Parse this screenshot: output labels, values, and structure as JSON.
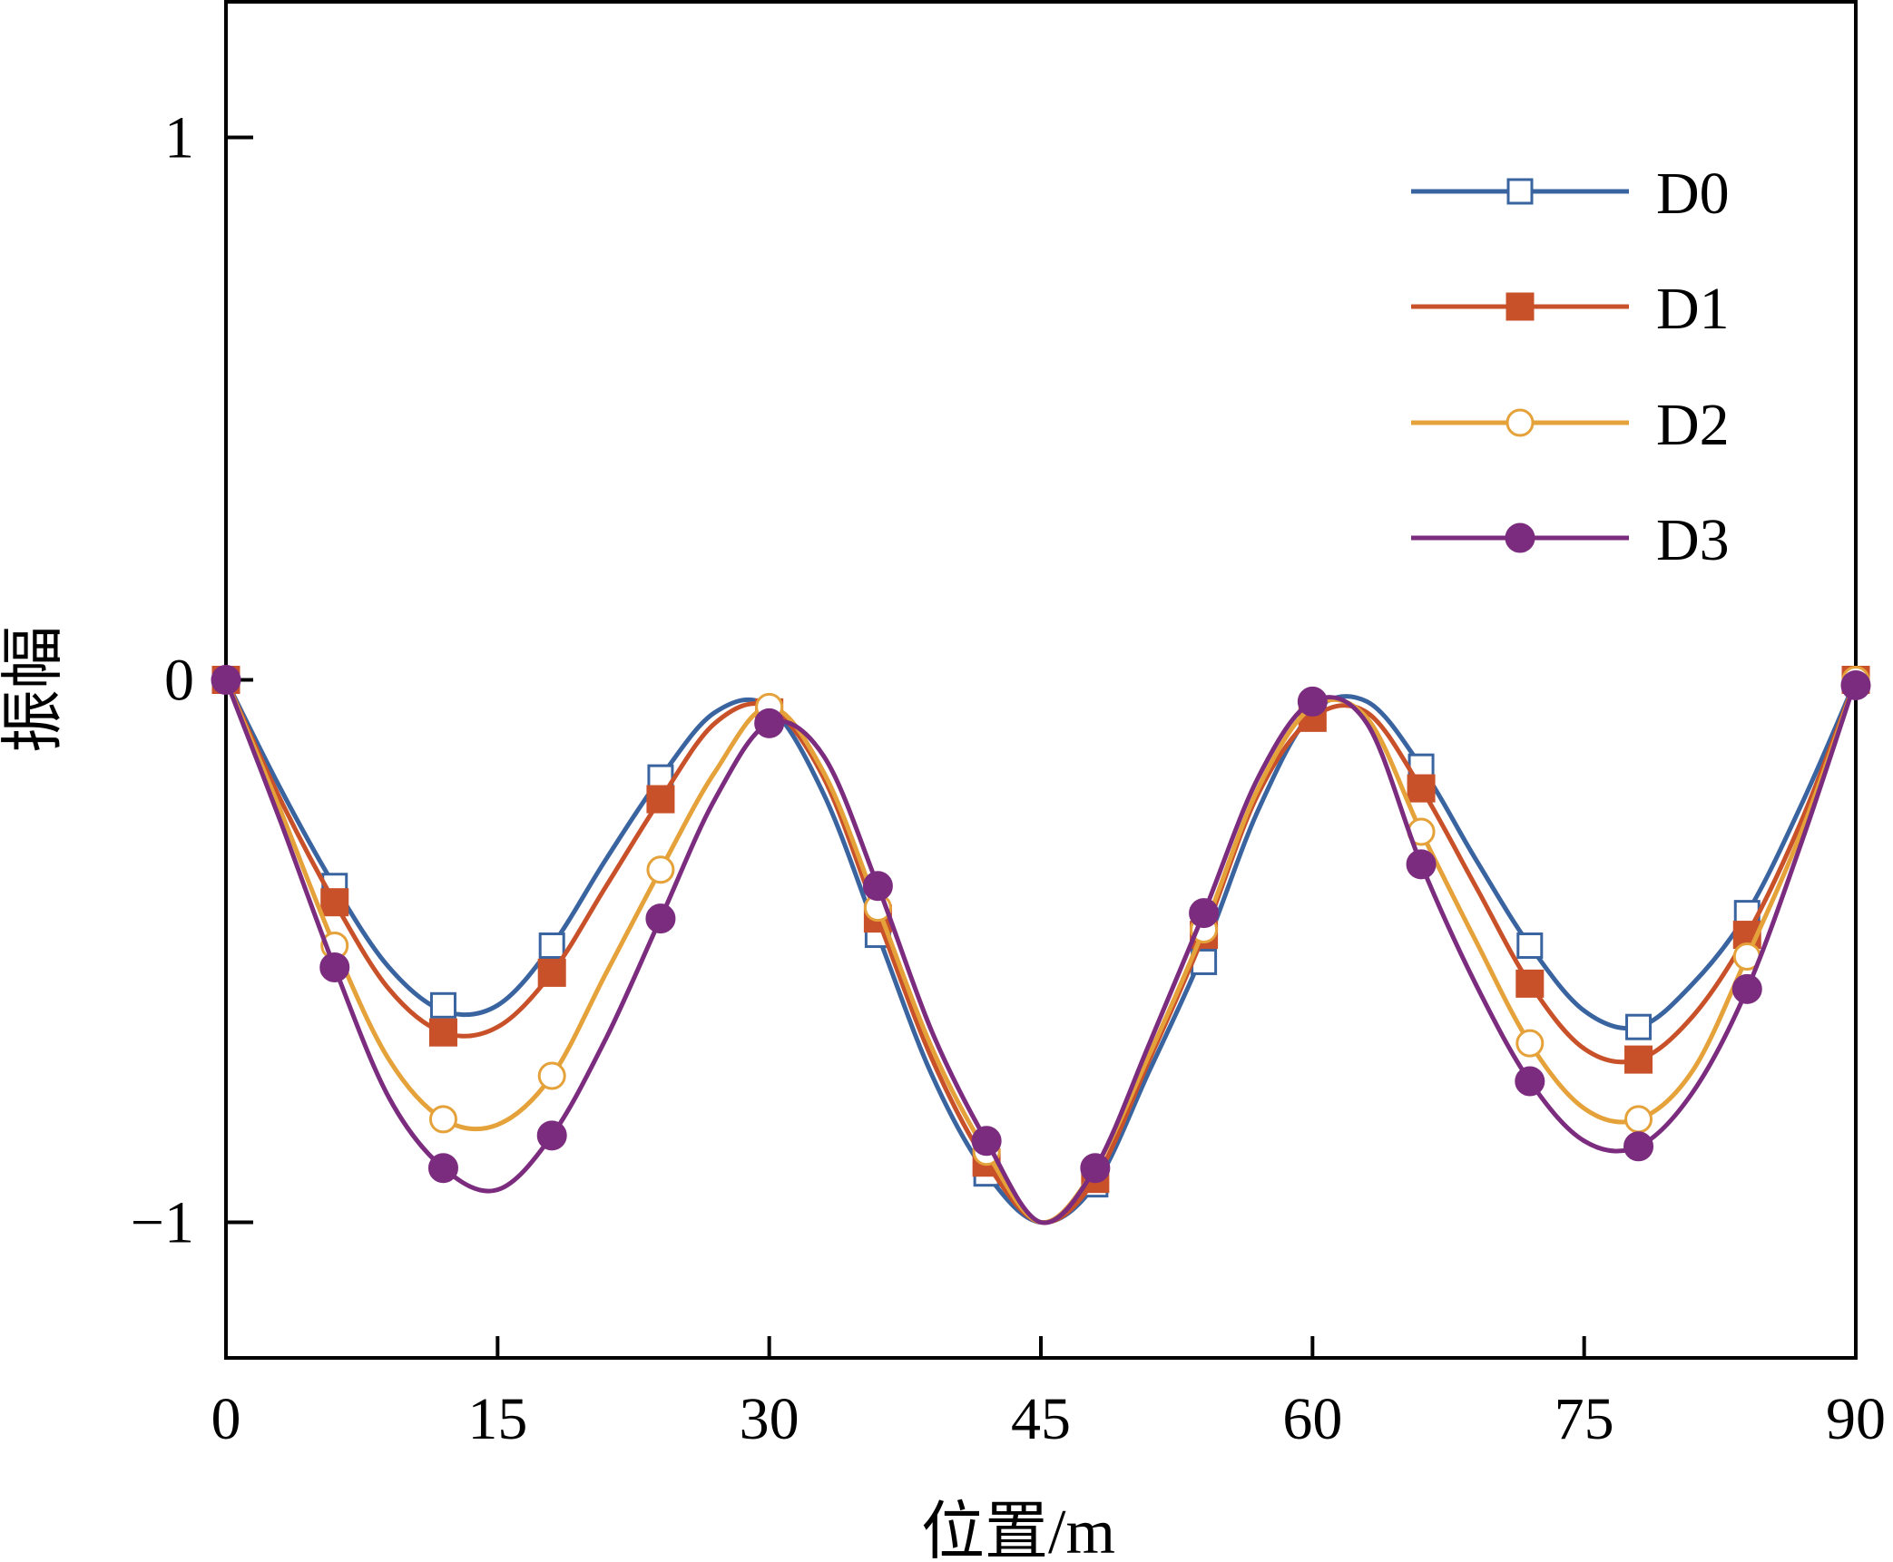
{
  "chart_data": {
    "type": "line",
    "title": "",
    "xlabel": "位置/m",
    "ylabel": "振幅",
    "xlim": [
      0,
      90
    ],
    "ylim": [
      -1.25,
      1.25
    ],
    "xticks": [
      0,
      15,
      30,
      45,
      60,
      75,
      90
    ],
    "xtick_labels": [
      "0",
      "15",
      "30",
      "45",
      "60",
      "75",
      "90"
    ],
    "yticks": [
      1,
      0,
      -1
    ],
    "ytick_labels": [
      "1",
      "0",
      "−1"
    ],
    "grid": false,
    "legend_position": "top-right",
    "series": [
      {
        "name": "D0",
        "color": "#3a64a0",
        "marker": "square-open",
        "x": [
          0,
          3,
          6,
          9,
          12,
          15,
          18,
          21,
          24,
          27,
          30,
          33,
          36,
          39,
          42,
          45,
          48,
          51,
          54,
          57,
          60,
          63,
          66,
          69,
          72,
          75,
          78,
          81,
          84,
          87,
          90
        ],
        "y": [
          0,
          -0.2,
          -0.38,
          -0.53,
          -0.61,
          -0.6,
          -0.49,
          -0.33,
          -0.18,
          -0.06,
          -0.05,
          -0.21,
          -0.47,
          -0.73,
          -0.91,
          -1.0,
          -0.93,
          -0.72,
          -0.5,
          -0.24,
          -0.06,
          -0.04,
          -0.16,
          -0.33,
          -0.49,
          -0.61,
          -0.64,
          -0.56,
          -0.43,
          -0.23,
          0
        ]
      },
      {
        "name": "D1",
        "color": "#c8512a",
        "marker": "square-filled",
        "x": [
          0,
          3,
          6,
          9,
          12,
          15,
          18,
          21,
          24,
          27,
          30,
          33,
          36,
          39,
          42,
          45,
          48,
          51,
          54,
          57,
          60,
          63,
          66,
          69,
          72,
          75,
          78,
          81,
          84,
          87,
          90
        ],
        "y": [
          0,
          -0.22,
          -0.41,
          -0.57,
          -0.65,
          -0.64,
          -0.54,
          -0.38,
          -0.22,
          -0.08,
          -0.05,
          -0.18,
          -0.44,
          -0.7,
          -0.89,
          -1.0,
          -0.92,
          -0.7,
          -0.47,
          -0.21,
          -0.07,
          -0.06,
          -0.2,
          -0.38,
          -0.56,
          -0.68,
          -0.7,
          -0.62,
          -0.47,
          -0.26,
          0
        ]
      },
      {
        "name": "D2",
        "color": "#e6a23a",
        "marker": "circle-open",
        "x": [
          0,
          3,
          6,
          9,
          12,
          15,
          18,
          21,
          24,
          27,
          30,
          33,
          36,
          39,
          42,
          45,
          48,
          51,
          54,
          57,
          60,
          63,
          66,
          69,
          72,
          75,
          78,
          81,
          84,
          87,
          90
        ],
        "y": [
          0,
          -0.24,
          -0.49,
          -0.7,
          -0.81,
          -0.82,
          -0.73,
          -0.54,
          -0.35,
          -0.17,
          -0.05,
          -0.17,
          -0.42,
          -0.68,
          -0.87,
          -1.0,
          -0.9,
          -0.69,
          -0.46,
          -0.2,
          -0.05,
          -0.07,
          -0.28,
          -0.48,
          -0.67,
          -0.79,
          -0.81,
          -0.72,
          -0.51,
          -0.28,
          0
        ]
      },
      {
        "name": "D3",
        "color": "#7b2c7e",
        "marker": "circle-filled",
        "x": [
          0,
          3,
          6,
          9,
          12,
          15,
          18,
          21,
          24,
          27,
          30,
          33,
          36,
          39,
          42,
          45,
          48,
          51,
          54,
          57,
          60,
          63,
          66,
          69,
          72,
          75,
          78,
          81,
          84,
          87,
          90
        ],
        "y": [
          0,
          -0.26,
          -0.53,
          -0.77,
          -0.9,
          -0.94,
          -0.84,
          -0.66,
          -0.44,
          -0.22,
          -0.08,
          -0.14,
          -0.38,
          -0.65,
          -0.85,
          -1.0,
          -0.9,
          -0.67,
          -0.43,
          -0.18,
          -0.04,
          -0.08,
          -0.34,
          -0.56,
          -0.74,
          -0.85,
          -0.86,
          -0.76,
          -0.57,
          -0.3,
          0
        ]
      }
    ],
    "markers": {
      "x": [
        0,
        6,
        12,
        18,
        24,
        30,
        36,
        42,
        48,
        54,
        60,
        66,
        72,
        78,
        84,
        90
      ],
      "D0": [
        0,
        -0.38,
        -0.6,
        -0.49,
        -0.18,
        -0.06,
        -0.47,
        -0.91,
        -0.93,
        -0.52,
        -0.06,
        -0.16,
        -0.49,
        -0.64,
        -0.43,
        0
      ],
      "D1": [
        0,
        -0.41,
        -0.65,
        -0.54,
        -0.22,
        -0.06,
        -0.44,
        -0.89,
        -0.92,
        -0.47,
        -0.07,
        -0.2,
        -0.56,
        -0.7,
        -0.47,
        0
      ],
      "D2": [
        0,
        -0.49,
        -0.81,
        -0.73,
        -0.35,
        -0.05,
        -0.42,
        -0.87,
        -0.9,
        -0.46,
        -0.04,
        -0.28,
        -0.67,
        -0.81,
        -0.51,
        0
      ],
      "D3": [
        0,
        -0.53,
        -0.9,
        -0.84,
        -0.44,
        -0.08,
        -0.38,
        -0.85,
        -0.9,
        -0.43,
        -0.04,
        -0.34,
        -0.74,
        -0.86,
        -0.57,
        -0.01
      ]
    }
  }
}
